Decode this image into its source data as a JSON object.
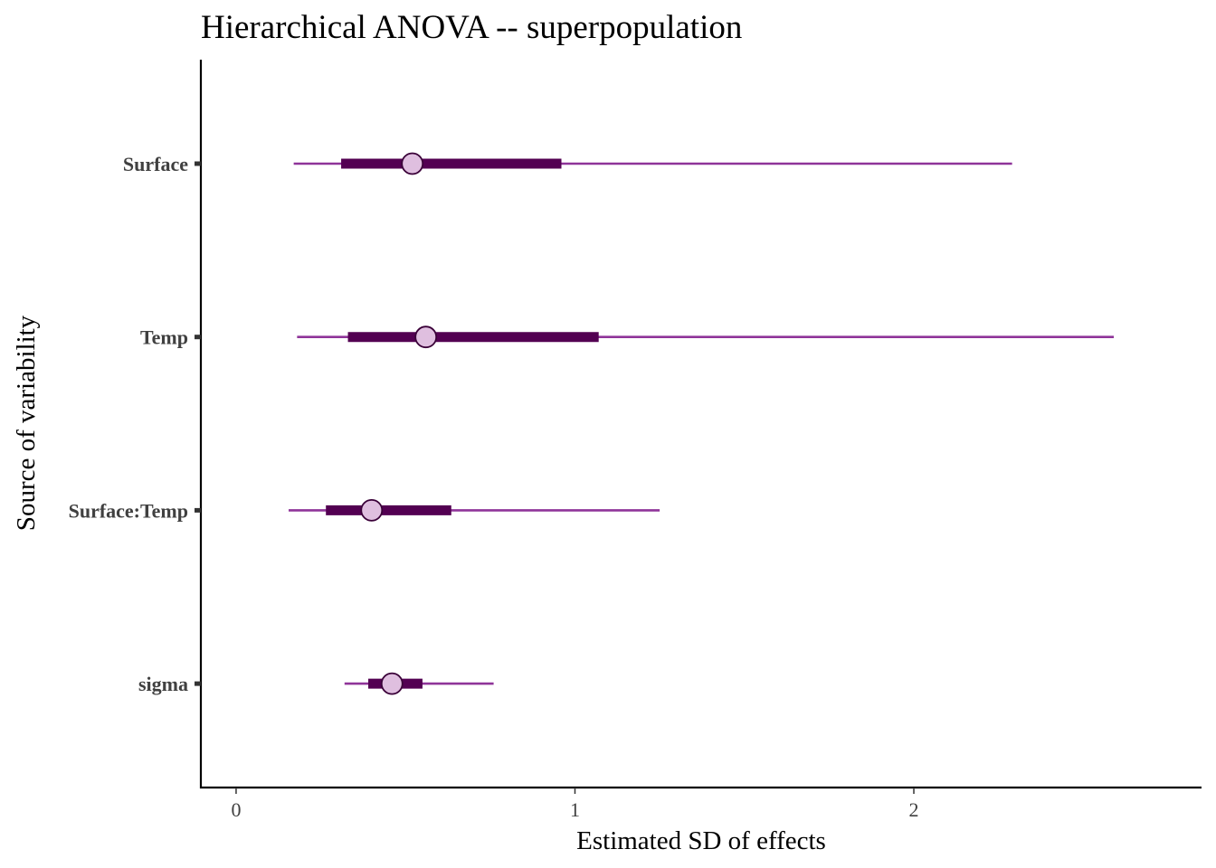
{
  "chart_data": {
    "type": "interval",
    "title": "Hierarchical ANOVA -- superpopulation",
    "xlabel": "Estimated SD of effects",
    "ylabel": "Source of variability",
    "xlim": [
      -0.104,
      2.849
    ],
    "xticks": [
      0,
      1,
      2
    ],
    "xtick_labels": [
      "0",
      "1",
      "2"
    ],
    "grid": false,
    "legend": "none",
    "categories": [
      "Surface",
      "Temp",
      "Surface:Temp",
      "sigma"
    ],
    "intervals": [
      {
        "name": "Surface",
        "ll": 0.17,
        "l": 0.31,
        "m": 0.52,
        "h": 0.96,
        "hh": 2.29
      },
      {
        "name": "Temp",
        "ll": 0.18,
        "l": 0.33,
        "m": 0.56,
        "h": 1.07,
        "hh": 2.59
      },
      {
        "name": "Surface:Temp",
        "ll": 0.155,
        "l": 0.265,
        "m": 0.4,
        "h": 0.635,
        "hh": 1.25
      },
      {
        "name": "sigma",
        "ll": 0.32,
        "l": 0.39,
        "m": 0.46,
        "h": 0.55,
        "hh": 0.76
      }
    ],
    "colors": {
      "outer_line": "#8f3499",
      "inner_line": "#530052",
      "point_fill": "#dfbfdf",
      "point_stroke": "#3a0038",
      "axis": "#000000"
    }
  }
}
